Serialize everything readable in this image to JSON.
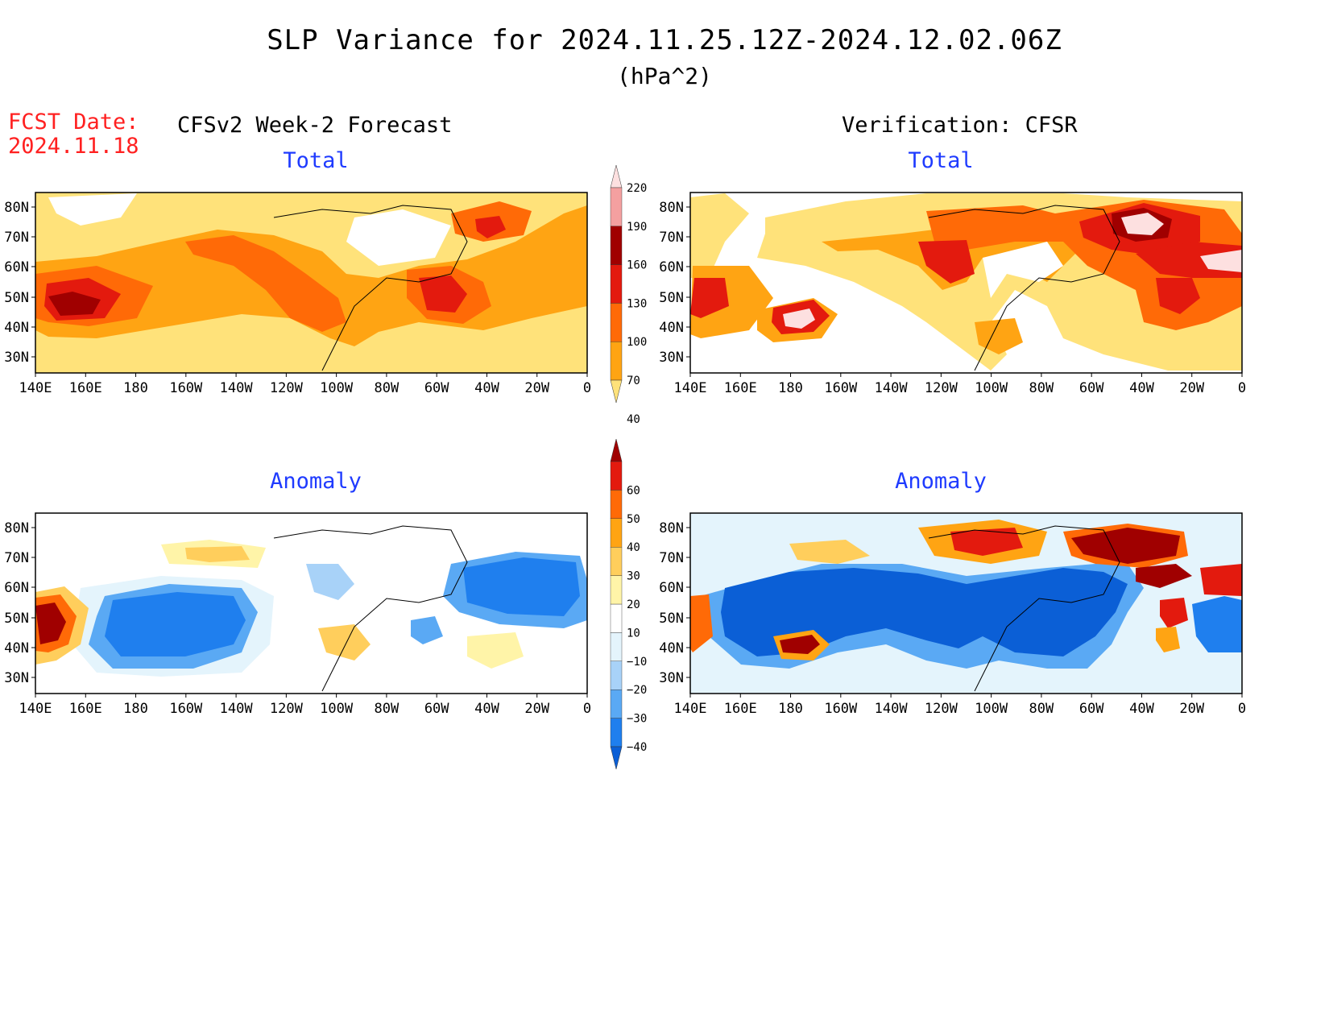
{
  "title": "SLP Variance for 2024.11.25.12Z-2024.12.02.06Z",
  "units": "(hPa^2)",
  "fcst_label": "FCST Date:",
  "fcst_date": "2024.11.18",
  "left_column_title": "CFSv2 Week-2 Forecast",
  "right_column_title": "Verification: CFSR",
  "panel_titles": {
    "total": "Total",
    "anomaly": "Anomaly"
  },
  "lat_ticks": [
    "80N",
    "70N",
    "60N",
    "50N",
    "40N",
    "30N"
  ],
  "lon_ticks": [
    "140E",
    "160E",
    "180",
    "160W",
    "140W",
    "120W",
    "100W",
    "80W",
    "60W",
    "40W",
    "20W",
    "0"
  ],
  "total_colorbar": {
    "levels": [
      40,
      70,
      100,
      130,
      160,
      190,
      220
    ],
    "colors": [
      "#ffe27a",
      "#ffa413",
      "#ff6a07",
      "#e31a0e",
      "#a00000",
      "#f4a0a0",
      "#fde0e0"
    ]
  },
  "anomaly_colorbar": {
    "levels": [
      -40,
      -30,
      -20,
      -10,
      10,
      20,
      30,
      40,
      50,
      60
    ],
    "colors": [
      "#0b5fd6",
      "#1f7fee",
      "#5aa9f4",
      "#a8d2f8",
      "#e4f4fc",
      "#ffffff",
      "#fff4a8",
      "#ffce5c",
      "#ffa413",
      "#ff6a07",
      "#e31a0e",
      "#a00000"
    ]
  },
  "icons": {
    "map": "map-icon"
  }
}
